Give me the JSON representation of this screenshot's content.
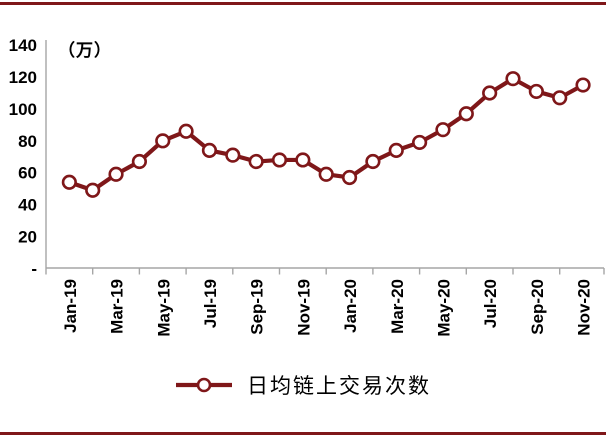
{
  "colors": {
    "series": "#7F1719",
    "marker_fill": "#FFFFFF",
    "axis": "#A6A6A6",
    "text": "#000000",
    "border_rule": "#7F1719",
    "background": "#FFFFFF"
  },
  "chart_data": {
    "type": "line",
    "title": "",
    "unit_label": "（万）",
    "legend": "日均链上交易次数",
    "legend_position": "bottom",
    "grid": false,
    "x": [
      "Jan-19",
      "Feb-19",
      "Mar-19",
      "Apr-19",
      "May-19",
      "Jun-19",
      "Jul-19",
      "Aug-19",
      "Sep-19",
      "Oct-19",
      "Nov-19",
      "Dec-19",
      "Jan-20",
      "Feb-20",
      "Mar-20",
      "Apr-20",
      "May-20",
      "Jun-20",
      "Jul-20",
      "Aug-20",
      "Sep-20",
      "Oct-20",
      "Nov-20"
    ],
    "values": [
      54,
      49,
      59,
      67,
      80,
      86,
      74,
      71,
      67,
      68,
      68,
      59,
      57,
      67,
      74,
      79,
      87,
      97,
      110,
      119,
      111,
      107,
      115
    ],
    "x_tick_labels": [
      "Jan-19",
      "Mar-19",
      "May-19",
      "Jul-19",
      "Sep-19",
      "Nov-19",
      "Jan-20",
      "Mar-20",
      "May-20",
      "Jul-20",
      "Sep-20",
      "Nov-20"
    ],
    "y_ticks": [
      0,
      20,
      40,
      60,
      80,
      100,
      120,
      140
    ],
    "y_tick_labels": [
      "-",
      "20",
      "40",
      "60",
      "80",
      "100",
      "120",
      "140"
    ],
    "ylim": [
      0,
      140
    ],
    "marker": "circle-open-white"
  }
}
